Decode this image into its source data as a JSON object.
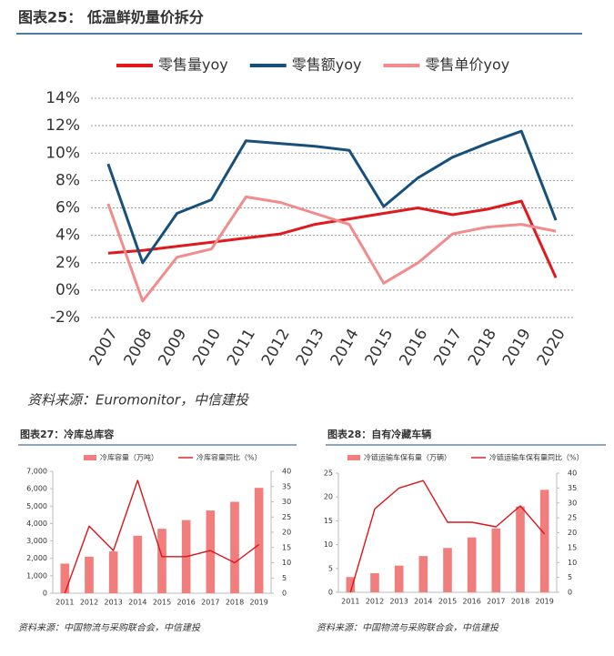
{
  "chart_data": [
    {
      "type": "line",
      "title": "图表25： 低温鲜奶量价拆分",
      "source": "资料来源：Euromonitor，中信建投",
      "categories": [
        "2007",
        "2008",
        "2009",
        "2010",
        "2011",
        "2012",
        "2013",
        "2014",
        "2015",
        "2016",
        "2017",
        "2018",
        "2019",
        "2020"
      ],
      "series": [
        {
          "name": "零售量yoy",
          "color": "#e0191e",
          "values": [
            2.7,
            2.9,
            3.2,
            3.5,
            3.8,
            4.1,
            4.8,
            5.2,
            5.6,
            6.0,
            5.5,
            5.9,
            6.5,
            0.9
          ]
        },
        {
          "name": "零售额yoy",
          "color": "#17507a",
          "values": [
            9.2,
            2.0,
            5.6,
            6.6,
            10.9,
            10.7,
            10.5,
            10.2,
            6.1,
            8.2,
            9.7,
            10.7,
            11.6,
            5.1
          ]
        },
        {
          "name": "零售单价yoy",
          "color": "#f28b8b",
          "values": [
            6.3,
            -0.8,
            2.4,
            3.0,
            6.8,
            6.4,
            5.6,
            4.8,
            0.5,
            2.0,
            4.1,
            4.6,
            4.8,
            4.3
          ]
        }
      ],
      "ylim": [
        -2,
        14
      ],
      "yticks": [
        {
          "value": -2,
          "label": "-2%"
        },
        {
          "value": 0,
          "label": "0%"
        },
        {
          "value": 2,
          "label": "2%"
        },
        {
          "value": 4,
          "label": "4%"
        },
        {
          "value": 6,
          "label": "6%"
        },
        {
          "value": 8,
          "label": "8%"
        },
        {
          "value": 10,
          "label": "10%"
        },
        {
          "value": 12,
          "label": "12%"
        },
        {
          "value": 14,
          "label": "14%"
        }
      ],
      "grid": true,
      "legend": "top"
    },
    {
      "type": "combo",
      "title": "图表27：冷库总库容",
      "source": "资料来源：中国物流与采购联合会，中信建投",
      "categories": [
        "2011",
        "2012",
        "2013",
        "2014",
        "2015",
        "2016",
        "2017",
        "2018",
        "2019"
      ],
      "series": [
        {
          "name": "冷库容量（万吨）",
          "color": "#f27d7d",
          "values": [
            1700,
            2100,
            2400,
            3300,
            3700,
            4200,
            4750,
            5250,
            6050
          ]
        },
        {
          "name": "冷库容量同比（%）",
          "color": "#d9161c",
          "axis": "y2",
          "values": [
            0,
            22,
            14,
            37,
            12,
            12,
            14,
            10,
            16
          ]
        }
      ],
      "ylim": [
        0,
        7000
      ],
      "yticks": [
        0,
        {
          "value": 1000,
          "label": "1,000"
        },
        {
          "value": 2000,
          "label": "2,000"
        },
        {
          "value": 3000,
          "label": "3,000"
        },
        {
          "value": 4000,
          "label": "4,000"
        },
        {
          "value": 5000,
          "label": "5,000"
        },
        {
          "value": 6000,
          "label": "6,000"
        },
        {
          "value": 7000,
          "label": "7,000"
        }
      ],
      "y2lim": [
        0,
        40
      ],
      "y2ticks": [
        0,
        5,
        10,
        15,
        20,
        25,
        30,
        35,
        40
      ],
      "grid": false,
      "legend": "top"
    },
    {
      "type": "combo",
      "title": "图表28：自有冷藏车辆",
      "source": "资料来源：中国物流与采购联合会，中信建投",
      "categories": [
        "2011",
        "2012",
        "2013",
        "2014",
        "2015",
        "2016",
        "2017",
        "2018",
        "2019"
      ],
      "series": [
        {
          "name": "冷链运输车保有量（万辆）",
          "color": "#f27d7d",
          "values": [
            3.2,
            4.0,
            5.6,
            7.6,
            9.3,
            11.5,
            13.4,
            18.0,
            21.5
          ]
        },
        {
          "name": "冷链运输车保有量同比（%）",
          "color": "#d9161c",
          "axis": "y2",
          "values": [
            0,
            28,
            35,
            37.5,
            23.5,
            23.5,
            22,
            29,
            19.5
          ]
        }
      ],
      "ylim": [
        0,
        25
      ],
      "yticks": [
        0,
        5,
        10,
        15,
        20,
        25
      ],
      "y2lim": [
        0,
        40
      ],
      "y2ticks": [
        0,
        5,
        10,
        15,
        20,
        25,
        30,
        35,
        40
      ],
      "grid": false,
      "legend": "top"
    }
  ]
}
